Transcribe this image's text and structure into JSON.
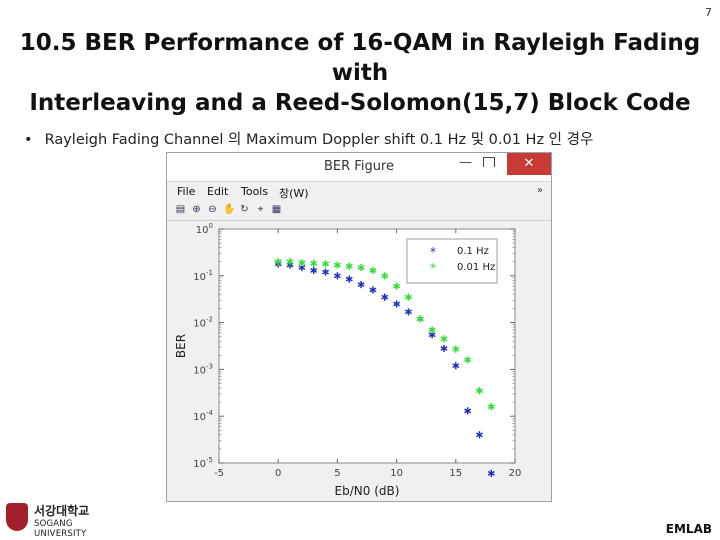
{
  "page": {
    "number": "7",
    "title_line1": "10.5 BER Performance of 16-QAM in Rayleigh Fading with",
    "title_line2": "Interleaving and a Reed-Solomon(15,7) Block Code",
    "bullet": "Rayleigh Fading Channel 의 Maximum Doppler shift 0.1 Hz 및 0.01 Hz 인 경우",
    "footer_label": "EMLAB",
    "logo_korean": "서강대학교",
    "logo_english": "SOGANG UNIVERSITY"
  },
  "window": {
    "title": "BER Figure",
    "minimize": "—",
    "close": "✕",
    "menu": [
      "File",
      "Edit",
      "Tools",
      "창(W)"
    ],
    "menu_overflow_icon": "double-chevron-icon",
    "toolbar_icons": [
      "print-icon",
      "zoom-in-icon",
      "zoom-out-icon",
      "pan-icon",
      "rotate-icon",
      "data-cursor-icon",
      "insert-colorbar-icon"
    ]
  },
  "chart_data": {
    "type": "scatter",
    "xlabel": "Eb/N0 (dB)",
    "ylabel": "BER",
    "xlim": [
      -5,
      20
    ],
    "ylim_log10": [
      -5,
      0
    ],
    "yscale": "log",
    "grid": false,
    "legend_position": "top-right",
    "xticks": [
      "-5",
      "0",
      "5",
      "10",
      "15",
      "20"
    ],
    "yticks": [
      "10^0",
      "10^-1",
      "10^-2",
      "10^-3",
      "10^-4",
      "10^-5"
    ],
    "marker": "*",
    "series": [
      {
        "name": "0.1 Hz",
        "color": "#1f2fbf",
        "x": [
          0,
          1,
          2,
          3,
          4,
          5,
          6,
          7,
          8,
          9,
          10,
          11,
          12,
          13,
          14,
          15,
          16,
          17,
          18
        ],
        "y": [
          0.18,
          0.17,
          0.15,
          0.13,
          0.12,
          0.1,
          0.085,
          0.065,
          0.05,
          0.035,
          0.025,
          0.017,
          0.012,
          0.0055,
          0.0028,
          0.0012,
          0.00013,
          4e-05,
          6e-06
        ]
      },
      {
        "name": "0.01 Hz",
        "color": "#2ee02e",
        "x": [
          0,
          1,
          2,
          3,
          4,
          5,
          6,
          7,
          8,
          9,
          10,
          11,
          12,
          13,
          14,
          15,
          16,
          17,
          18
        ],
        "y": [
          0.2,
          0.2,
          0.19,
          0.185,
          0.18,
          0.17,
          0.16,
          0.15,
          0.13,
          0.1,
          0.06,
          0.035,
          0.012,
          0.007,
          0.0045,
          0.0027,
          0.0016,
          0.00035,
          0.00016
        ]
      }
    ]
  }
}
